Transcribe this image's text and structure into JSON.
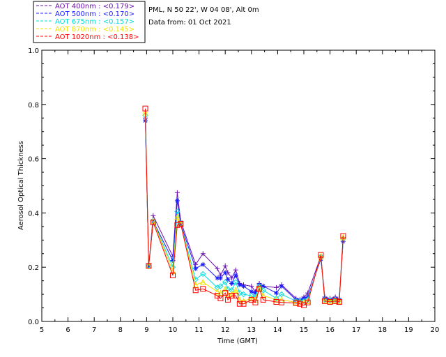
{
  "chart_data": {
    "type": "line",
    "title": "PML, N 50 22', W 04 08', Alt 0m",
    "subtitle": "Data from: 01 Oct 2021",
    "xlabel": "Time (GMT)",
    "ylabel": "Aerosol Optical Thickness",
    "xlim": [
      5,
      20
    ],
    "ylim": [
      0,
      1
    ],
    "xticks": [
      5,
      6,
      7,
      8,
      9,
      10,
      11,
      12,
      13,
      14,
      15,
      16,
      17,
      18,
      19,
      20
    ],
    "yticks": [
      0.0,
      0.2,
      0.4,
      0.6,
      0.8,
      1.0
    ],
    "grid": false,
    "legend_position": "top-left",
    "series": [
      {
        "name": "AOT  400nm : <0.179>",
        "color": "#6a0dad",
        "marker": "plus",
        "points": [
          [
            8.95,
            0.75
          ],
          [
            9.08,
            0.205
          ],
          [
            9.25,
            0.39
          ],
          [
            10.0,
            0.24
          ],
          [
            10.17,
            0.475
          ],
          [
            10.3,
            0.37
          ],
          [
            10.87,
            0.21
          ],
          [
            11.15,
            0.25
          ],
          [
            11.7,
            0.195
          ],
          [
            11.82,
            0.17
          ],
          [
            12.0,
            0.205
          ],
          [
            12.1,
            0.18
          ],
          [
            12.25,
            0.16
          ],
          [
            12.4,
            0.19
          ],
          [
            12.55,
            0.14
          ],
          [
            12.7,
            0.135
          ],
          [
            13.0,
            0.13
          ],
          [
            13.15,
            0.11
          ],
          [
            13.3,
            0.14
          ],
          [
            13.45,
            0.13
          ],
          [
            13.95,
            0.125
          ],
          [
            14.15,
            0.135
          ],
          [
            14.7,
            0.085
          ],
          [
            14.85,
            0.08
          ],
          [
            15.0,
            0.09
          ],
          [
            15.15,
            0.105
          ],
          [
            15.65,
            0.24
          ],
          [
            15.8,
            0.09
          ],
          [
            16.0,
            0.085
          ],
          [
            16.2,
            0.09
          ],
          [
            16.35,
            0.085
          ],
          [
            16.5,
            0.31
          ]
        ]
      },
      {
        "name": "AOT  500nm : <0.170>",
        "color": "#1a1aff",
        "marker": "star",
        "points": [
          [
            8.95,
            0.74
          ],
          [
            9.08,
            0.205
          ],
          [
            9.25,
            0.37
          ],
          [
            10.0,
            0.225
          ],
          [
            10.17,
            0.445
          ],
          [
            10.3,
            0.36
          ],
          [
            10.87,
            0.195
          ],
          [
            11.15,
            0.21
          ],
          [
            11.7,
            0.16
          ],
          [
            11.82,
            0.16
          ],
          [
            12.0,
            0.18
          ],
          [
            12.1,
            0.155
          ],
          [
            12.25,
            0.14
          ],
          [
            12.4,
            0.17
          ],
          [
            12.55,
            0.135
          ],
          [
            12.7,
            0.13
          ],
          [
            13.0,
            0.11
          ],
          [
            13.15,
            0.105
          ],
          [
            13.3,
            0.135
          ],
          [
            13.45,
            0.13
          ],
          [
            13.95,
            0.105
          ],
          [
            14.15,
            0.13
          ],
          [
            14.7,
            0.08
          ],
          [
            14.85,
            0.078
          ],
          [
            15.0,
            0.085
          ],
          [
            15.15,
            0.09
          ],
          [
            15.65,
            0.23
          ],
          [
            15.8,
            0.085
          ],
          [
            16.0,
            0.08
          ],
          [
            16.2,
            0.085
          ],
          [
            16.35,
            0.08
          ],
          [
            16.5,
            0.295
          ]
        ]
      },
      {
        "name": "AOT  675nm : <0.157>",
        "color": "#00dcdc",
        "marker": "diamond",
        "points": [
          [
            8.95,
            0.76
          ],
          [
            9.08,
            0.205
          ],
          [
            9.25,
            0.37
          ],
          [
            10.0,
            0.2
          ],
          [
            10.17,
            0.405
          ],
          [
            10.3,
            0.36
          ],
          [
            10.87,
            0.155
          ],
          [
            11.15,
            0.175
          ],
          [
            11.7,
            0.125
          ],
          [
            11.82,
            0.13
          ],
          [
            12.0,
            0.145
          ],
          [
            12.1,
            0.12
          ],
          [
            12.25,
            0.115
          ],
          [
            12.4,
            0.145
          ],
          [
            12.55,
            0.105
          ],
          [
            12.7,
            0.1
          ],
          [
            13.0,
            0.095
          ],
          [
            13.15,
            0.09
          ],
          [
            13.3,
            0.13
          ],
          [
            13.45,
            0.115
          ],
          [
            13.95,
            0.085
          ],
          [
            14.15,
            0.1
          ],
          [
            14.7,
            0.075
          ],
          [
            14.85,
            0.075
          ],
          [
            15.0,
            0.075
          ],
          [
            15.15,
            0.08
          ],
          [
            15.65,
            0.24
          ],
          [
            15.8,
            0.08
          ],
          [
            16.0,
            0.078
          ],
          [
            16.2,
            0.08
          ],
          [
            16.35,
            0.078
          ],
          [
            16.5,
            0.305
          ]
        ]
      },
      {
        "name": "AOT  870nm : <0.145>",
        "color": "#f0e000",
        "marker": "triangle",
        "points": [
          [
            8.95,
            0.77
          ],
          [
            9.08,
            0.205
          ],
          [
            9.25,
            0.37
          ],
          [
            10.0,
            0.185
          ],
          [
            10.17,
            0.385
          ],
          [
            10.3,
            0.36
          ],
          [
            10.87,
            0.135
          ],
          [
            11.15,
            0.145
          ],
          [
            11.7,
            0.11
          ],
          [
            11.82,
            0.105
          ],
          [
            12.0,
            0.12
          ],
          [
            12.1,
            0.1
          ],
          [
            12.25,
            0.1
          ],
          [
            12.4,
            0.115
          ],
          [
            12.55,
            0.08
          ],
          [
            12.7,
            0.075
          ],
          [
            13.0,
            0.085
          ],
          [
            13.15,
            0.08
          ],
          [
            13.3,
            0.125
          ],
          [
            13.45,
            0.095
          ],
          [
            13.95,
            0.08
          ],
          [
            14.15,
            0.08
          ],
          [
            14.7,
            0.07
          ],
          [
            14.85,
            0.07
          ],
          [
            15.0,
            0.07
          ],
          [
            15.15,
            0.075
          ],
          [
            15.65,
            0.24
          ],
          [
            15.8,
            0.078
          ],
          [
            16.0,
            0.075
          ],
          [
            16.2,
            0.078
          ],
          [
            16.35,
            0.075
          ],
          [
            16.5,
            0.31
          ]
        ]
      },
      {
        "name": "AOT 1020nm : <0.138>",
        "color": "#ff0000",
        "marker": "square",
        "points": [
          [
            8.95,
            0.785
          ],
          [
            9.08,
            0.205
          ],
          [
            9.25,
            0.365
          ],
          [
            10.0,
            0.17
          ],
          [
            10.17,
            0.355
          ],
          [
            10.3,
            0.36
          ],
          [
            10.87,
            0.115
          ],
          [
            11.15,
            0.12
          ],
          [
            11.7,
            0.095
          ],
          [
            11.82,
            0.085
          ],
          [
            12.0,
            0.105
          ],
          [
            12.1,
            0.08
          ],
          [
            12.25,
            0.095
          ],
          [
            12.4,
            0.095
          ],
          [
            12.55,
            0.065
          ],
          [
            12.7,
            0.065
          ],
          [
            13.0,
            0.08
          ],
          [
            13.15,
            0.07
          ],
          [
            13.3,
            0.12
          ],
          [
            13.45,
            0.08
          ],
          [
            13.95,
            0.072
          ],
          [
            14.15,
            0.07
          ],
          [
            14.7,
            0.068
          ],
          [
            14.85,
            0.065
          ],
          [
            15.0,
            0.06
          ],
          [
            15.15,
            0.07
          ],
          [
            15.65,
            0.245
          ],
          [
            15.8,
            0.075
          ],
          [
            16.0,
            0.072
          ],
          [
            16.2,
            0.075
          ],
          [
            16.35,
            0.072
          ],
          [
            16.5,
            0.315
          ]
        ]
      }
    ]
  }
}
